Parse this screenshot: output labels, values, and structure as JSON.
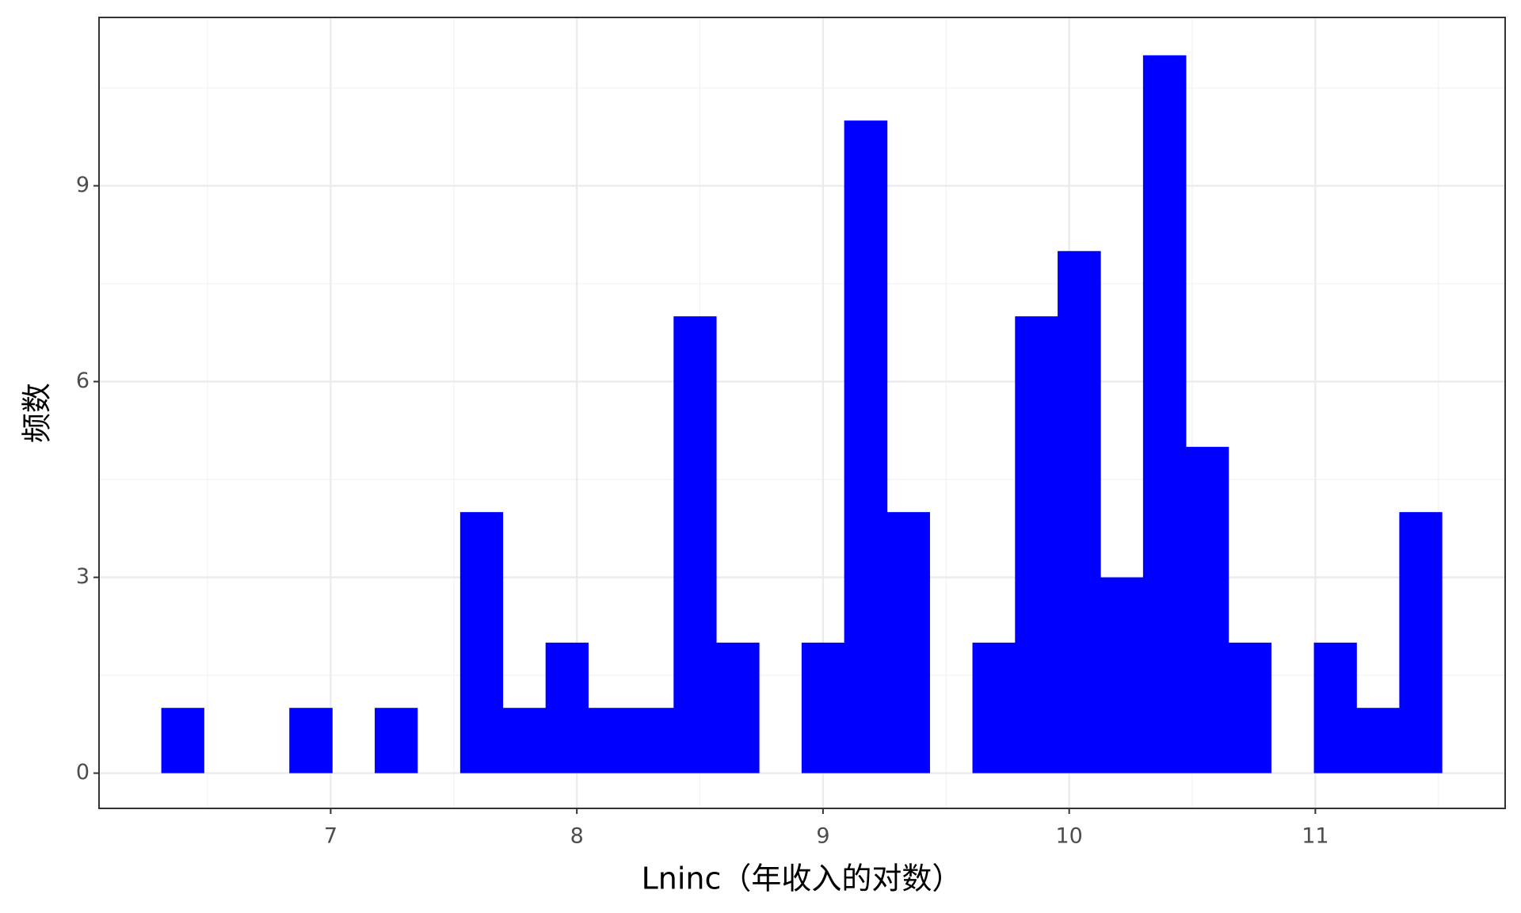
{
  "chart_data": {
    "type": "histogram",
    "x_label": "Lninc（年收入的对数）",
    "y_label": "频数",
    "bins": [
      6.312,
      6.485,
      6.659,
      6.832,
      7.006,
      7.179,
      7.352,
      7.526,
      7.699,
      7.873,
      8.046,
      8.219,
      8.393,
      8.566,
      8.74,
      8.913,
      9.086,
      9.26,
      9.433,
      9.607,
      9.78,
      9.953,
      10.127,
      10.3,
      10.474,
      10.647,
      10.82,
      10.994,
      11.167,
      11.341,
      11.514
    ],
    "values": [
      1,
      0,
      0,
      1,
      0,
      1,
      0,
      4,
      1,
      2,
      1,
      1,
      7,
      2,
      0,
      2,
      10,
      4,
      0,
      2,
      7,
      8,
      3,
      11,
      5,
      2,
      0,
      2,
      1,
      4
    ],
    "color": "#0000ff",
    "xlim": [
      6.059,
      11.771
    ],
    "xticks": [
      7,
      8,
      9,
      10,
      11
    ],
    "ylim": [
      -0.54,
      11.58
    ],
    "yticks": [
      0,
      3,
      6,
      9
    ],
    "grid": true
  }
}
